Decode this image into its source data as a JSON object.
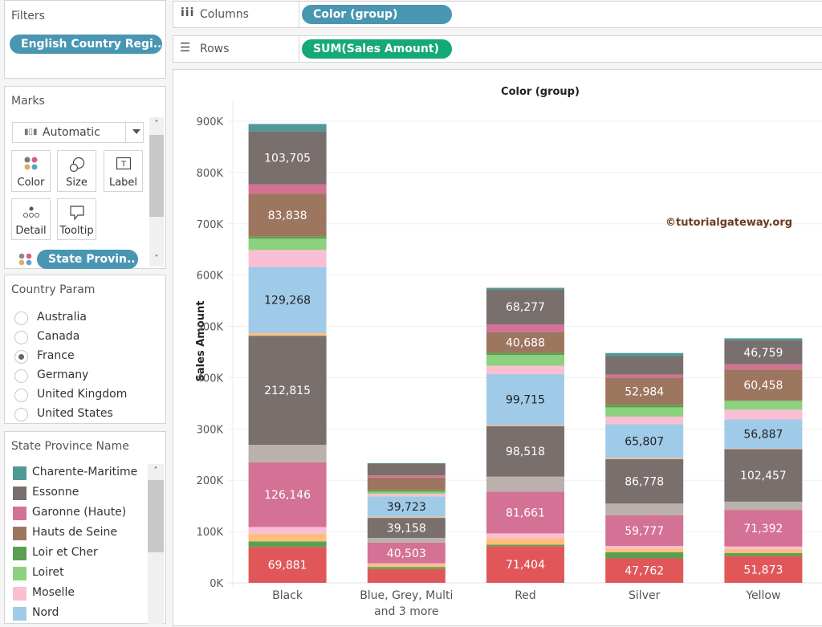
{
  "filters": {
    "title": "Filters",
    "pill": "English Country Regi.."
  },
  "marks": {
    "title": "Marks",
    "mark_type": "Automatic",
    "buttons": [
      {
        "label": "Color",
        "icon": "color-dots-icon"
      },
      {
        "label": "Size",
        "icon": "size-icon"
      },
      {
        "label": "Label",
        "icon": "label-icon"
      },
      {
        "label": "Detail",
        "icon": "detail-icon"
      },
      {
        "label": "Tooltip",
        "icon": "tooltip-icon"
      }
    ],
    "field_pill": "State Provin.."
  },
  "country_param": {
    "title": "Country Param",
    "options": [
      "Australia",
      "Canada",
      "France",
      "Germany",
      "United Kingdom",
      "United States"
    ],
    "selected": "France"
  },
  "legend": {
    "title": "State Province Name",
    "items": [
      {
        "label": "Charente-Maritime",
        "color": "#4e9a96"
      },
      {
        "label": "Essonne",
        "color": "#796f6d"
      },
      {
        "label": "Garonne (Haute)",
        "color": "#d37295"
      },
      {
        "label": "Hauts de Seine",
        "color": "#9d7660"
      },
      {
        "label": "Loir et Cher",
        "color": "#59a14f"
      },
      {
        "label": "Loiret",
        "color": "#8cd17d"
      },
      {
        "label": "Moselle",
        "color": "#fabfd2"
      },
      {
        "label": "Nord",
        "color": "#a0cbe8"
      }
    ]
  },
  "shelves": {
    "columns_label": "Columns",
    "columns_pill": "Color (group)",
    "rows_label": "Rows",
    "rows_pill": "SUM(Sales Amount)"
  },
  "watermark": "©tutorialgateway.org",
  "chart_data": {
    "type": "bar",
    "stacked": true,
    "title": "Color (group)",
    "xlabel": "",
    "ylabel": "Sales Amount",
    "ylim": [
      0,
      900000
    ],
    "yticks": [
      "0K",
      "100K",
      "200K",
      "300K",
      "400K",
      "500K",
      "600K",
      "700K",
      "800K",
      "900K"
    ],
    "grid": true,
    "categories": [
      "Black",
      "Blue, Grey, Multi and 3 more",
      "Red",
      "Silver",
      "Yellow"
    ],
    "category_labels": [
      [
        "Black"
      ],
      [
        "Blue, Grey, Multi",
        "and 3 more"
      ],
      [
        "Red"
      ],
      [
        "Silver"
      ],
      [
        "Yellow"
      ]
    ],
    "segment_order_bottom_to_top": [
      "Red seg",
      "Loir et Cher",
      "Orange seg",
      "Moselle",
      "Garonne (Haute)",
      "Light grey seg",
      "Essonne",
      "Orange thin",
      "Nord",
      "Moselle 2",
      "Loiret",
      "Loir et Cher 2",
      "Hauts de Seine",
      "Garonne (Haute) 2",
      "Essonne 2",
      "Charente-Maritime"
    ],
    "series": [
      {
        "name": "red",
        "color": "#e15759",
        "values": [
          69881,
          27000,
          71404,
          47762,
          51873
        ],
        "labels": [
          "69,881",
          "",
          "71,404",
          "47,762",
          "51,873"
        ]
      },
      {
        "name": "green-a",
        "color": "#59a14f",
        "values": [
          11000,
          4000,
          3000,
          12000,
          6000
        ],
        "labels": [
          "",
          "",
          "",
          "",
          ""
        ]
      },
      {
        "name": "orange-a",
        "color": "#ffbe7d",
        "values": [
          15000,
          5000,
          13000,
          7000,
          8000
        ],
        "labels": [
          "",
          "",
          "",
          "",
          ""
        ]
      },
      {
        "name": "pink-light-a",
        "color": "#fabfd2",
        "values": [
          13000,
          2000,
          9000,
          5000,
          5000
        ],
        "labels": [
          "",
          "",
          "",
          "",
          ""
        ]
      },
      {
        "name": "Garonne (Haute)",
        "color": "#d37295",
        "values": [
          126146,
          40503,
          81661,
          59777,
          71392
        ],
        "labels": [
          "126,146",
          "40,503",
          "81,661",
          "59,777",
          "71,392"
        ]
      },
      {
        "name": "grey-light",
        "color": "#bab0ac",
        "values": [
          34000,
          9000,
          29000,
          23000,
          16000
        ],
        "labels": [
          "",
          "",
          "",
          "",
          ""
        ]
      },
      {
        "name": "Essonne",
        "color": "#796f6d",
        "values": [
          212815,
          39158,
          98518,
          86778,
          102457
        ],
        "labels": [
          "212,815",
          "39,158",
          "98,518",
          "86,778",
          "102,457"
        ]
      },
      {
        "name": "orange-b",
        "color": "#ffbe7d",
        "values": [
          5000,
          2000,
          2000,
          2000,
          1000
        ],
        "labels": [
          "",
          "",
          "",
          "",
          ""
        ]
      },
      {
        "name": "Nord",
        "color": "#a0cbe8",
        "values": [
          129268,
          39723,
          99715,
          65807,
          56887
        ],
        "labels": [
          "129,268",
          "39,723",
          "99,715",
          "65,807",
          "56,887"
        ]
      },
      {
        "name": "Moselle",
        "color": "#fabfd2",
        "values": [
          33000,
          5000,
          16000,
          15000,
          19000
        ],
        "labels": [
          "",
          "",
          "",
          "",
          ""
        ]
      },
      {
        "name": "Loiret",
        "color": "#8cd17d",
        "values": [
          22000,
          4000,
          21000,
          18000,
          17000
        ],
        "labels": [
          "",
          "",
          "",
          "",
          ""
        ]
      },
      {
        "name": "green-b",
        "color": "#59a14f",
        "values": [
          4000,
          3000,
          4000,
          5000,
          1000
        ],
        "labels": [
          "",
          "",
          "",
          "",
          ""
        ]
      },
      {
        "name": "Hauts de Seine",
        "color": "#9d7660",
        "values": [
          83838,
          25000,
          40688,
          52984,
          60458
        ],
        "labels": [
          "83,838",
          "",
          "40,688",
          "52,984",
          "60,458"
        ]
      },
      {
        "name": "Garonne (Haute) top",
        "color": "#d37295",
        "values": [
          18000,
          4000,
          15000,
          6000,
          10000
        ],
        "labels": [
          "",
          "",
          "",
          "",
          ""
        ]
      },
      {
        "name": "Essonne top",
        "color": "#796f6d",
        "values": [
          103705,
          23000,
          68277,
          36000,
          46759
        ],
        "labels": [
          "103,705",
          "",
          "68,277",
          "",
          "46,759"
        ]
      },
      {
        "name": "Charente-Maritime",
        "color": "#4e9a96",
        "values": [
          14000,
          1000,
          3000,
          6000,
          4000
        ],
        "labels": [
          "",
          "",
          "",
          "",
          ""
        ]
      }
    ]
  }
}
